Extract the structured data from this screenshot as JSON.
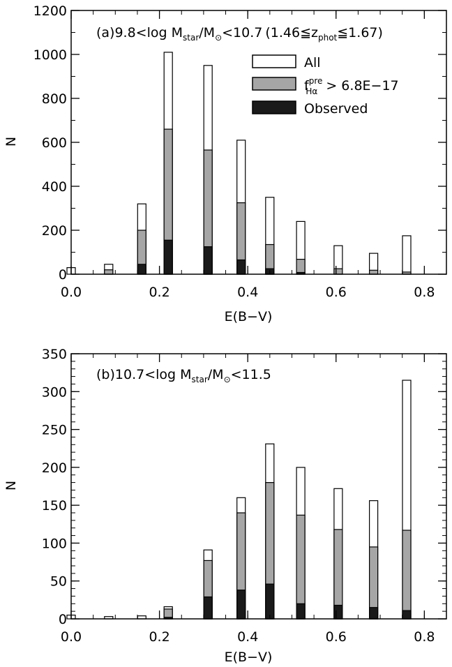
{
  "chart_data": [
    {
      "type": "bar",
      "panel": "(a)",
      "annotation": {
        "prefix": "(a)9.8<log M",
        "sub1": "star",
        "mid": "/M",
        "sub2": "⊙",
        "suffix": "<10.7",
        "z_prefix": "(1.46≦z",
        "z_sub": "phot",
        "z_suffix": "≦1.67)"
      },
      "xlabel": "E(B−V)",
      "ylabel": "N",
      "xlim": [
        0.0,
        0.85
      ],
      "ylim": [
        0,
        1200
      ],
      "xticks": [
        "0.0",
        "0.2",
        "0.4",
        "0.6",
        "0.8"
      ],
      "yticks": [
        "0",
        "200",
        "400",
        "600",
        "800",
        "1000",
        "1200"
      ],
      "legend_position": "top-right",
      "x": [
        0.0,
        0.085,
        0.16,
        0.22,
        0.31,
        0.385,
        0.45,
        0.52,
        0.605,
        0.685,
        0.76
      ],
      "series": [
        {
          "name": "All",
          "color": "#ffffff",
          "values": [
            30,
            45,
            320,
            1010,
            950,
            610,
            350,
            240,
            130,
            95,
            175
          ]
        },
        {
          "name": "f_Hα^pre > 6.8E−17",
          "color": "#a6a6a6",
          "values": [
            0,
            20,
            200,
            660,
            565,
            325,
            135,
            68,
            25,
            18,
            10
          ]
        },
        {
          "name": "Observed",
          "color": "#1a1a1a",
          "values": [
            0,
            0,
            45,
            155,
            125,
            65,
            25,
            8,
            0,
            0,
            0
          ]
        }
      ],
      "legend": {
        "all": "All",
        "f_main": "f",
        "f_sup": "pre",
        "f_sub": "Hα",
        "f_rest": " > 6.8E−17",
        "observed": "Observed"
      }
    },
    {
      "type": "bar",
      "panel": "(b)",
      "annotation": {
        "prefix": "(b)10.7<log M",
        "sub1": "star",
        "mid": "/M",
        "sub2": "⊙",
        "suffix": "<11.5"
      },
      "xlabel": "E(B−V)",
      "ylabel": "N",
      "xlim": [
        0.0,
        0.85
      ],
      "ylim": [
        0,
        350
      ],
      "xticks": [
        "0.0",
        "0.2",
        "0.4",
        "0.6",
        "0.8"
      ],
      "yticks": [
        "0",
        "50",
        "100",
        "150",
        "200",
        "250",
        "300",
        "350"
      ],
      "x": [
        0.0,
        0.085,
        0.16,
        0.22,
        0.31,
        0.385,
        0.45,
        0.52,
        0.605,
        0.685,
        0.76
      ],
      "series": [
        {
          "name": "All",
          "color": "#ffffff",
          "values": [
            5,
            3,
            4,
            16,
            91,
            160,
            231,
            200,
            172,
            156,
            315
          ]
        },
        {
          "name": "f_Hα^pre > 6.8E−17",
          "color": "#a6a6a6",
          "values": [
            0,
            0,
            0,
            13,
            77,
            140,
            180,
            137,
            118,
            95,
            117
          ]
        },
        {
          "name": "Observed",
          "color": "#1a1a1a",
          "values": [
            0,
            0,
            0,
            2,
            29,
            38,
            46,
            20,
            18,
            15,
            11
          ]
        }
      ]
    }
  ]
}
